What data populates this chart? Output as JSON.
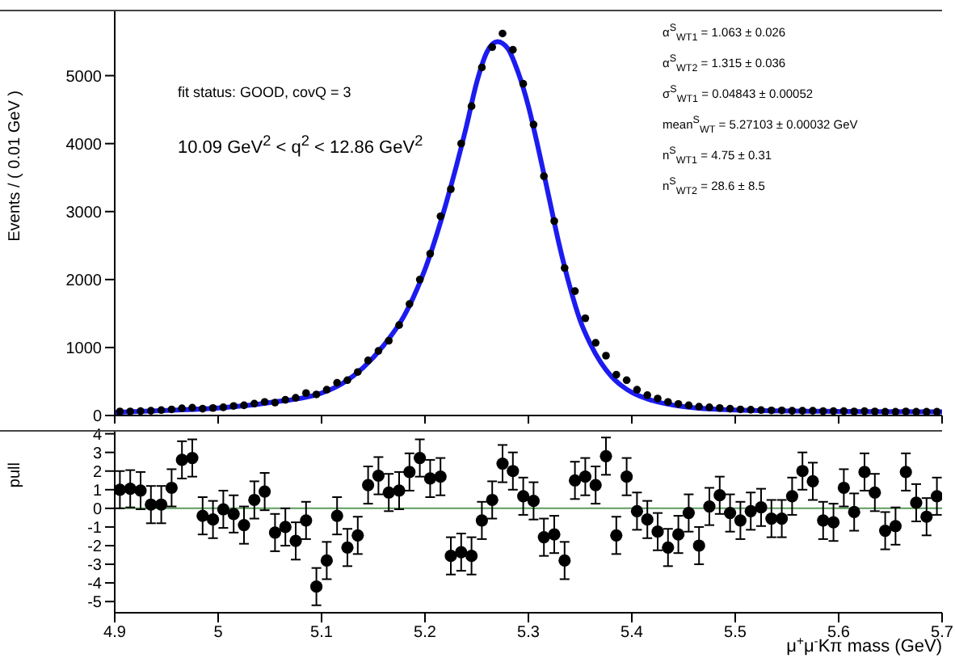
{
  "chart_data": [
    {
      "type": "scatter",
      "ylabel": "Events / ( 0.01 GeV )",
      "xlim": [
        4.9,
        5.7
      ],
      "xticks": [
        4.9,
        5,
        5.1,
        5.2,
        5.3,
        5.4,
        5.5,
        5.6,
        5.7
      ],
      "ylim": [
        0,
        5970
      ],
      "yticks": [
        0,
        1000,
        2000,
        3000,
        4000,
        5000
      ],
      "tick_labels": "y",
      "annotations": [
        "fit status: GOOD, covQ = 3",
        "10.09 GeV$^{2}$ < q$^{2}$ < 12.86 GeV$^{2}$",
        "α$^{S}$$_{WT1}$ = 1.063 ± 0.026",
        "α$^{S}$$_{WT2}$ = 1.315 ± 0.036",
        "σ$^{S}$$_{WT1}$ = 0.04843 ± 0.00052",
        "mean$^{S}$$_{WT}$ = 5.27103 ± 0.00032 GeV",
        "n$^{S}$$_{WT1}$ = 4.75 ± 0.31",
        "n$^{S}$$_{WT2}$ = 28.6 ± 8.5"
      ],
      "series": [
        {
          "type": "scatter",
          "color": "#000000",
          "x": [
            4.905,
            4.915,
            4.925,
            4.935,
            4.945,
            4.955,
            4.965,
            4.975,
            4.985,
            4.995,
            5.005,
            5.015,
            5.025,
            5.035,
            5.045,
            5.055,
            5.065,
            5.075,
            5.085,
            5.095,
            5.105,
            5.115,
            5.125,
            5.135,
            5.145,
            5.155,
            5.165,
            5.175,
            5.185,
            5.195,
            5.205,
            5.215,
            5.225,
            5.235,
            5.245,
            5.255,
            5.265,
            5.275,
            5.285,
            5.295,
            5.305,
            5.315,
            5.325,
            5.335,
            5.345,
            5.355,
            5.365,
            5.375,
            5.385,
            5.395,
            5.405,
            5.415,
            5.425,
            5.435,
            5.445,
            5.455,
            5.465,
            5.475,
            5.485,
            5.495,
            5.505,
            5.515,
            5.525,
            5.535,
            5.545,
            5.555,
            5.565,
            5.575,
            5.585,
            5.595,
            5.605,
            5.615,
            5.625,
            5.635,
            5.645,
            5.655,
            5.665,
            5.675,
            5.685,
            5.695
          ],
          "values": [
            60,
            60,
            65,
            70,
            80,
            90,
            105,
            115,
            100,
            110,
            120,
            140,
            150,
            175,
            200,
            190,
            230,
            260,
            330,
            310,
            380,
            480,
            520,
            640,
            810,
            950,
            1100,
            1330,
            1640,
            2000,
            2380,
            2930,
            3330,
            4000,
            4550,
            5120,
            5420,
            5620,
            5380,
            4880,
            4280,
            3520,
            2860,
            2170,
            1830,
            1430,
            1070,
            880,
            600,
            520,
            380,
            300,
            250,
            200,
            170,
            150,
            130,
            120,
            110,
            100,
            90,
            85,
            80,
            75,
            75,
            70,
            70,
            70,
            65,
            65,
            65,
            60,
            65,
            60,
            55,
            55,
            60,
            55,
            55,
            55
          ],
          "marker": "circle"
        },
        {
          "type": "line",
          "color": "#1c1cf0",
          "line_style": "solid",
          "marker": "none",
          "x": [
            4.9,
            4.95,
            5.0,
            5.05,
            5.1,
            5.12,
            5.14,
            5.16,
            5.18,
            5.2,
            5.22,
            5.24,
            5.25,
            5.26,
            5.27,
            5.28,
            5.29,
            5.3,
            5.31,
            5.32,
            5.33,
            5.34,
            5.35,
            5.36,
            5.37,
            5.38,
            5.39,
            5.4,
            5.42,
            5.45,
            5.5,
            5.6,
            5.7
          ],
          "values": [
            45,
            75,
            110,
            190,
            330,
            470,
            700,
            1030,
            1470,
            2150,
            3100,
            4250,
            4900,
            5350,
            5500,
            5400,
            5050,
            4550,
            3900,
            3200,
            2500,
            1900,
            1400,
            1050,
            780,
            580,
            440,
            340,
            220,
            130,
            80,
            60,
            55
          ]
        }
      ]
    },
    {
      "type": "scatter",
      "ylabel": "pull",
      "xlabel": "μ$^{+}$μ$^{-}$Kπ mass (GeV)",
      "xlim": [
        4.9,
        5.7
      ],
      "xticks": [
        4.9,
        5,
        5.1,
        5.2,
        5.3,
        5.4,
        5.5,
        5.6,
        5.7
      ],
      "ylim": [
        -5.6,
        4.2
      ],
      "yticks": [
        -5,
        -4,
        -3,
        -2,
        -1,
        0,
        1,
        2,
        3,
        4
      ],
      "marker": "circle",
      "ref_lines": [
        {
          "axis": "y",
          "value": 0,
          "color": "#5c9c5c"
        }
      ],
      "series": [
        {
          "type": "scatter",
          "color": "#000000",
          "x": [
            4.905,
            4.915,
            4.925,
            4.935,
            4.945,
            4.955,
            4.965,
            4.975,
            4.985,
            4.995,
            5.005,
            5.015,
            5.025,
            5.035,
            5.045,
            5.055,
            5.065,
            5.075,
            5.085,
            5.095,
            5.105,
            5.115,
            5.125,
            5.135,
            5.145,
            5.155,
            5.165,
            5.175,
            5.185,
            5.195,
            5.205,
            5.215,
            5.225,
            5.235,
            5.245,
            5.255,
            5.265,
            5.275,
            5.285,
            5.295,
            5.305,
            5.315,
            5.325,
            5.335,
            5.345,
            5.355,
            5.365,
            5.375,
            5.385,
            5.395,
            5.405,
            5.415,
            5.425,
            5.435,
            5.445,
            5.455,
            5.465,
            5.475,
            5.485,
            5.495,
            5.505,
            5.515,
            5.525,
            5.535,
            5.545,
            5.555,
            5.565,
            5.575,
            5.585,
            5.595,
            5.605,
            5.615,
            5.625,
            5.635,
            5.645,
            5.655,
            5.665,
            5.675,
            5.685,
            5.695
          ],
          "values": [
            1.0,
            1.05,
            0.95,
            0.2,
            0.2,
            1.1,
            2.6,
            2.7,
            -0.4,
            -0.6,
            -0.05,
            -0.3,
            -0.9,
            0.45,
            0.9,
            -1.3,
            -1.0,
            -1.75,
            -0.65,
            -4.2,
            -2.8,
            -0.4,
            -2.1,
            -1.45,
            1.25,
            1.75,
            0.85,
            0.95,
            1.95,
            2.7,
            1.6,
            1.7,
            -2.55,
            -2.35,
            -2.55,
            -0.65,
            0.45,
            2.4,
            2.0,
            0.65,
            0.4,
            -1.55,
            -1.4,
            -2.8,
            1.5,
            1.7,
            1.25,
            2.8,
            -1.45,
            1.7,
            -0.15,
            -0.6,
            -1.25,
            -2.1,
            -1.4,
            -0.25,
            -2.0,
            0.1,
            0.7,
            -0.25,
            -0.65,
            -0.15,
            0.05,
            -0.55,
            -0.55,
            0.65,
            2.0,
            1.45,
            -0.65,
            -0.75,
            1.1,
            -0.2,
            1.95,
            0.85,
            -1.2,
            -0.95,
            1.95,
            0.3,
            -0.45,
            0.65
          ],
          "errors": [
            1,
            1,
            1,
            1,
            1,
            1,
            1,
            1,
            1,
            1,
            1,
            1,
            1,
            1,
            1,
            1,
            1,
            1,
            1,
            1,
            1,
            1,
            1,
            1,
            1,
            1,
            1,
            1,
            1,
            1,
            1,
            1,
            1,
            1,
            1,
            1,
            1,
            1,
            1,
            1,
            1,
            1,
            1,
            1,
            1,
            1,
            1,
            1,
            1,
            1,
            1,
            1,
            1,
            1,
            1,
            1,
            1,
            1,
            1,
            1,
            1,
            1,
            1,
            1,
            1,
            1,
            1,
            1,
            1,
            1,
            1,
            1,
            1,
            1,
            1,
            1,
            1,
            1,
            1,
            1
          ]
        }
      ]
    }
  ]
}
